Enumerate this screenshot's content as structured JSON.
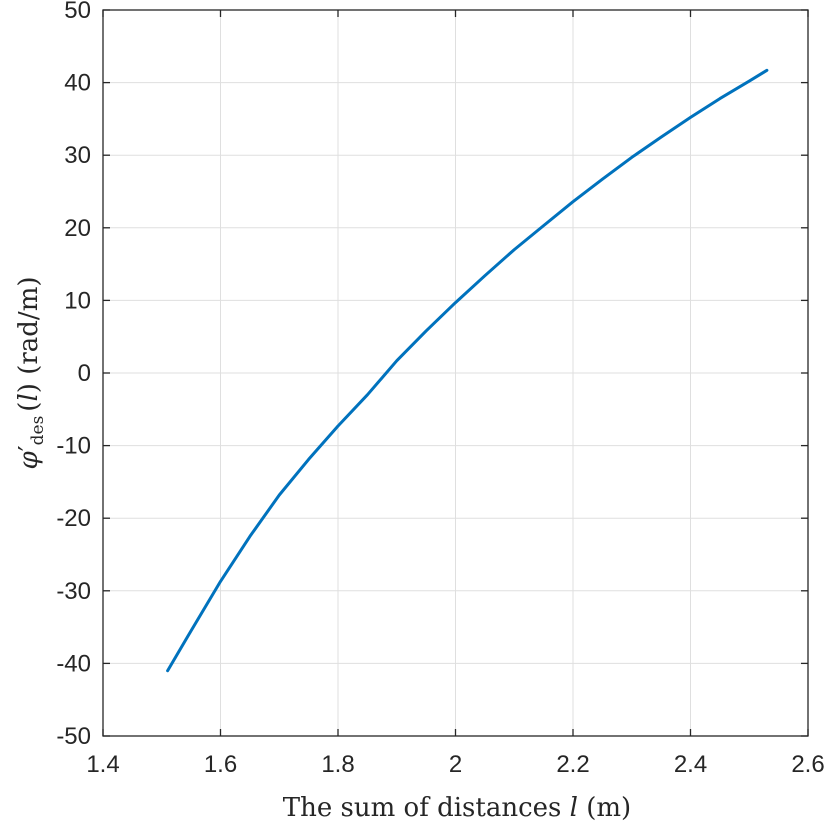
{
  "chart_data": {
    "type": "line",
    "xlabel_parts": {
      "prefix": "The sum of distances ",
      "var": "l",
      "suffix": " (m)"
    },
    "ylabel_parts": {
      "phi": "φ",
      "prime": "′",
      "sub": "des",
      "arg_open": "(",
      "var": "l",
      "arg_close": ")",
      "unit": " (rad/m)"
    },
    "xlim": [
      1.4,
      2.6
    ],
    "ylim": [
      -50,
      50
    ],
    "xticks": [
      1.4,
      1.6,
      1.8,
      2.0,
      2.2,
      2.4,
      2.6
    ],
    "xtick_labels": [
      "1.4",
      "1.6",
      "1.8",
      "2",
      "2.2",
      "2.4",
      "2.6"
    ],
    "yticks": [
      -50,
      -40,
      -30,
      -20,
      -10,
      0,
      10,
      20,
      30,
      40,
      50
    ],
    "ytick_labels": [
      "-50",
      "-40",
      "-30",
      "-20",
      "-10",
      "0",
      "10",
      "20",
      "30",
      "40",
      "50"
    ],
    "grid": true,
    "series": [
      {
        "color": "#0072bd",
        "x": [
          1.51,
          1.55,
          1.6,
          1.65,
          1.7,
          1.75,
          1.8,
          1.85,
          1.9,
          1.95,
          2.0,
          2.05,
          2.1,
          2.15,
          2.2,
          2.25,
          2.3,
          2.35,
          2.4,
          2.45,
          2.5,
          2.53
        ],
        "y": [
          -41.0,
          -35.5,
          -28.7,
          -22.5,
          -16.8,
          -11.9,
          -7.3,
          -3.0,
          1.7,
          5.8,
          9.7,
          13.4,
          17.0,
          20.3,
          23.6,
          26.7,
          29.7,
          32.5,
          35.2,
          37.8,
          40.2,
          41.7
        ]
      }
    ]
  }
}
